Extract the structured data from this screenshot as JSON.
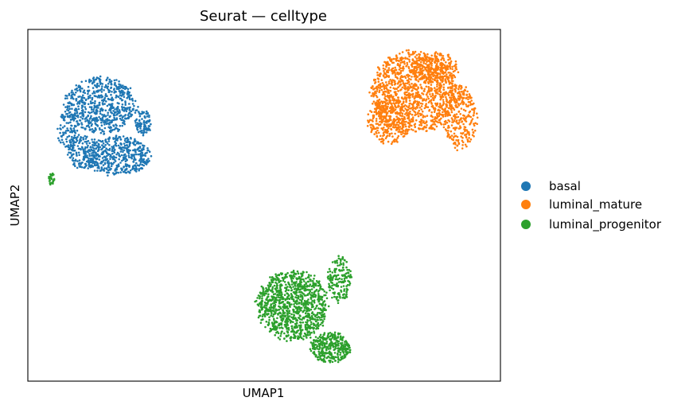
{
  "chart_data": {
    "type": "scatter",
    "title": "Seurat — celltype",
    "xlabel": "UMAP1",
    "ylabel": "UMAP2",
    "grid": false,
    "ticks_visible": false,
    "legend_position": "right",
    "xlim": [
      0,
      100
    ],
    "ylim": [
      0,
      100
    ],
    "series": [
      {
        "name": "basal",
        "color": "#1f77b4",
        "clusters": [
          {
            "cx": 15.5,
            "cy": 78.5,
            "rx": 7.5,
            "ry": 8.0,
            "n": 640
          },
          {
            "cx": 19.0,
            "cy": 64.0,
            "rx": 7.0,
            "ry": 5.5,
            "n": 460
          },
          {
            "cx": 12.0,
            "cy": 65.0,
            "rx": 3.5,
            "ry": 5.0,
            "n": 160
          },
          {
            "cx": 24.5,
            "cy": 73.5,
            "rx": 1.8,
            "ry": 3.5,
            "n": 90
          },
          {
            "cx": 8.5,
            "cy": 71.0,
            "rx": 2.2,
            "ry": 6.0,
            "n": 110
          }
        ]
      },
      {
        "name": "luminal_mature",
        "color": "#ff7f0e",
        "clusters": [
          {
            "cx": 81.5,
            "cy": 82.0,
            "rx": 9.0,
            "ry": 11.5,
            "n": 1150
          },
          {
            "cx": 91.5,
            "cy": 75.0,
            "rx": 3.5,
            "ry": 9.0,
            "n": 300
          },
          {
            "cx": 76.5,
            "cy": 74.0,
            "rx": 4.5,
            "ry": 6.5,
            "n": 280
          },
          {
            "cx": 86.0,
            "cy": 89.0,
            "rx": 5.0,
            "ry": 4.5,
            "n": 240
          }
        ]
      },
      {
        "name": "luminal_progenitor",
        "color": "#2ca02c",
        "clusters": [
          {
            "cx": 56.0,
            "cy": 21.5,
            "rx": 7.5,
            "ry": 10.0,
            "n": 1050
          },
          {
            "cx": 64.0,
            "cy": 9.5,
            "rx": 4.2,
            "ry": 4.3,
            "n": 330
          },
          {
            "cx": 66.0,
            "cy": 29.0,
            "rx": 2.5,
            "ry": 6.5,
            "n": 170
          },
          {
            "cx": 5.0,
            "cy": 57.5,
            "rx": 0.6,
            "ry": 2.2,
            "n": 30
          }
        ]
      }
    ]
  },
  "legend": {
    "items": [
      {
        "label": "basal",
        "color": "#1f77b4"
      },
      {
        "label": "luminal_mature",
        "color": "#ff7f0e"
      },
      {
        "label": "luminal_progenitor",
        "color": "#2ca02c"
      }
    ]
  }
}
